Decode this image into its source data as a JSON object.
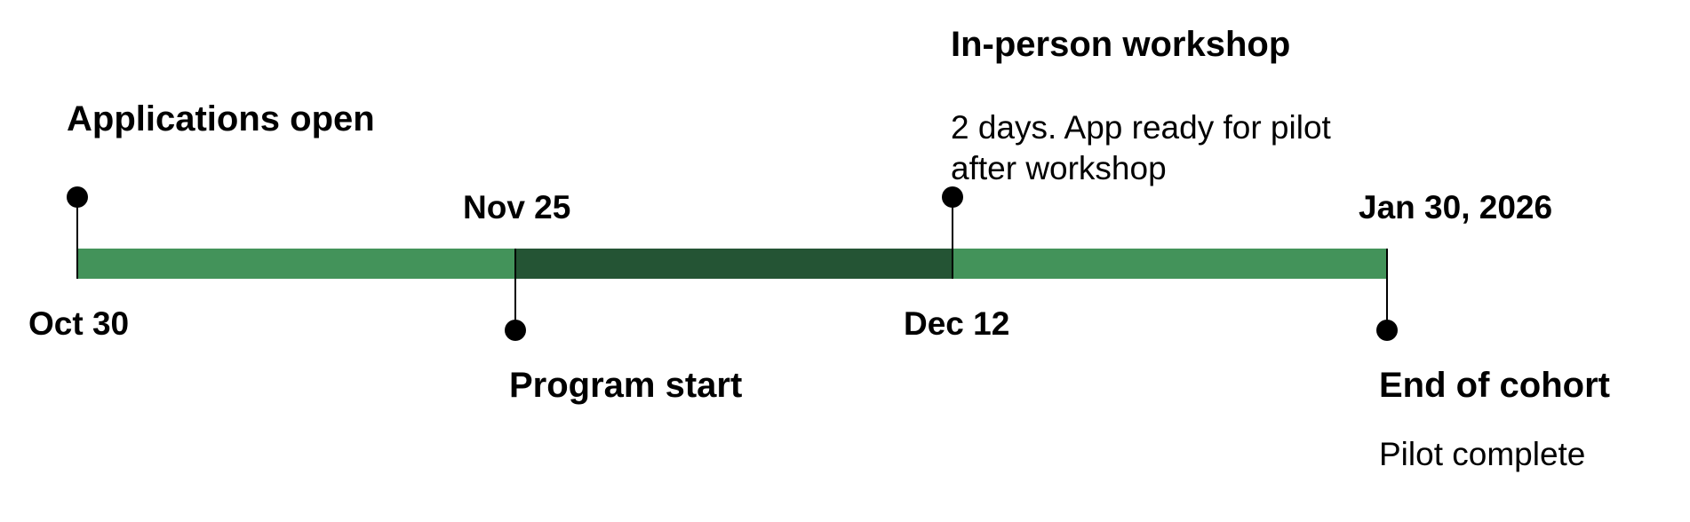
{
  "colors": {
    "light_green": "#43935a",
    "dark_green": "#245434",
    "marker": "#000000"
  },
  "timeline": {
    "segments": [
      {
        "from": "Oct 30",
        "to": "Nov 25",
        "color": "#43935a"
      },
      {
        "from": "Nov 25",
        "to": "Dec 12",
        "color": "#245434"
      },
      {
        "from": "Dec 12",
        "to": "Jan 30, 2026",
        "color": "#43935a"
      }
    ],
    "milestones": [
      {
        "date": "Oct 30",
        "title": "Applications open",
        "description": ""
      },
      {
        "date": "Nov 25",
        "title": "Program start",
        "description": ""
      },
      {
        "date": "Dec 12",
        "title": "In-person workshop",
        "description": "2 days. App ready for pilot after workshop"
      },
      {
        "date": "Jan 30, 2026",
        "title": "End of cohort",
        "description": "Pilot complete"
      }
    ]
  }
}
